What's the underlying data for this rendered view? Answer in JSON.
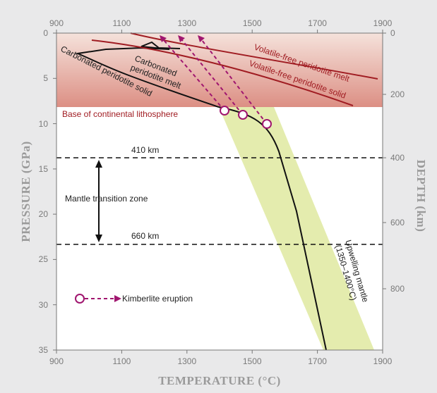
{
  "axes": {
    "x_label": "TEMPERATURE (°C)",
    "y_label_left": "PRESSURE (GPa)",
    "y_label_right": "DEPTH (km)",
    "x_ticks": [
      "900",
      "1100",
      "1300",
      "1500",
      "1700",
      "1900"
    ],
    "y_ticks_left": [
      "0",
      "5",
      "10",
      "15",
      "20",
      "25",
      "30",
      "35"
    ],
    "y_ticks_right": [
      "0",
      "200",
      "400",
      "600",
      "800"
    ]
  },
  "labels": {
    "volatile_free_melt": "Volatile-free peridotite melt",
    "volatile_free_solid": "Volatile-free peridotite solid",
    "carbonated_melt_line1": "Carbonated",
    "carbonated_melt_line2": "peridotite melt",
    "carbonated_solid": "Carbonated peridotite solid",
    "base_lithosphere": "Base of continental lithosphere",
    "km410": "410 km",
    "km660": "660 km",
    "transition_zone": "Mantle transition zone",
    "upwelling_line1": "Upwelling mantle",
    "upwelling_line2": "(1350–1400°C)",
    "legend_kimberlite": "Kimberlite eruption"
  },
  "colors": {
    "background": "#e9e9ea",
    "plot": "#ffffff",
    "lithosphere_top": "#f4ded7",
    "lithosphere_bottom": "#d98a7f",
    "volatile_free": "#a01c22",
    "kimberlite": "#a0166f",
    "upwelling_band": "#e2eaa8",
    "black": "#111111"
  },
  "chart_data": {
    "type": "phase-diagram",
    "x_range": [
      900,
      1900
    ],
    "y_range": [
      0,
      35
    ],
    "depth_ticks_km": [
      0,
      200,
      400,
      600,
      800
    ],
    "lithosphere_base_gpa": 7.7,
    "transition_zone_gpa": [
      13.6,
      23.1
    ],
    "kimberlite_eruptions": [
      {
        "start_temp": 1420,
        "start_pressure": 8.3,
        "end_temp": 1230,
        "end_pressure": 0.5
      },
      {
        "start_temp": 1470,
        "start_pressure": 8.8,
        "end_temp": 1280,
        "end_pressure": 0.5
      },
      {
        "start_temp": 1545,
        "start_pressure": 9.7,
        "end_temp": 1330,
        "end_pressure": 0.5
      }
    ]
  }
}
